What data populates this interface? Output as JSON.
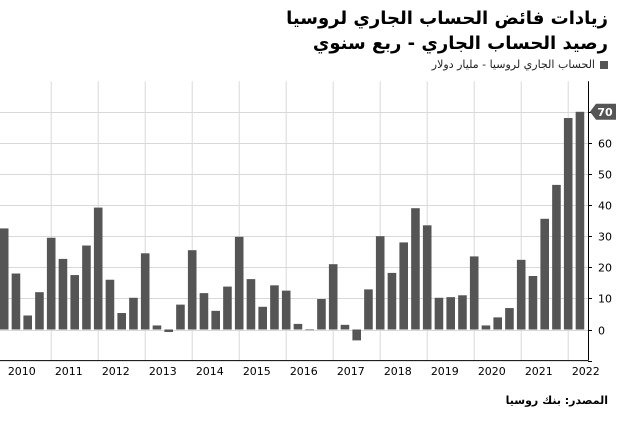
{
  "title": "زيادات فائض الحساب الجاري لروسيا",
  "subtitle": "رصيد الحساب الجاري - ربع سنوي",
  "legend": "الحساب الجاري لروسيا - مليار دولار",
  "source": "المصدر: بنك روسيا",
  "colors": {
    "bar": "#555555",
    "grid": "#d9d9d9",
    "badge": "#555555"
  },
  "chart_data": {
    "type": "bar",
    "title": "زيادات فائض الحساب الجاري لروسيا",
    "subtitle": "رصيد الحساب الجاري - ربع سنوي",
    "series": [
      {
        "name": "الحساب الجاري لروسيا - مليار دولار",
        "values": [
          32.5,
          18,
          4.5,
          12,
          29.5,
          22.7,
          17.5,
          27,
          39.2,
          16,
          5.3,
          10.2,
          24.5,
          1.3,
          -0.8,
          8,
          25.5,
          11.7,
          6,
          13.8,
          29.8,
          16.2,
          7.3,
          14.2,
          12.5,
          1.8,
          -0.2,
          9.8,
          21,
          1.5,
          -3.5,
          12.9,
          30,
          18.2,
          28,
          39,
          33.5,
          10.2,
          10.4,
          11,
          23.5,
          1.3,
          3.9,
          6.9,
          22.4,
          17.2,
          35.6,
          46.5,
          68,
          70
        ]
      }
    ],
    "x_ticks": [
      "2010",
      "2011",
      "2012",
      "2013",
      "2014",
      "2015",
      "2016",
      "2017",
      "2018",
      "2019",
      "2020",
      "2021",
      "2022"
    ],
    "y_ticks": [
      0,
      10,
      20,
      30,
      40,
      50,
      60,
      70
    ],
    "ylim": [
      -10,
      80
    ],
    "last_value_label": "70",
    "grid": true,
    "y_axis_position": "right"
  }
}
